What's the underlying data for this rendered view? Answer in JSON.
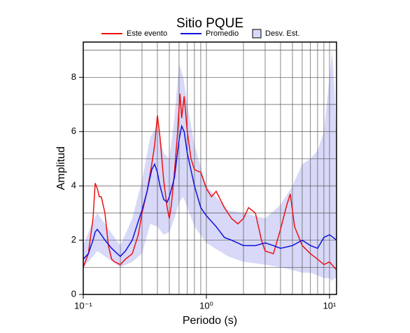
{
  "chart_data": {
    "type": "line",
    "title": "Sitio PQUE",
    "x_label": "Periodo (s)",
    "y_label": "Amplitud",
    "xscale": "log",
    "xlim": [
      0.1,
      11.4
    ],
    "ylim": [
      0,
      9.3
    ],
    "xticks": [
      {
        "value": 0.1,
        "label": "10⁻¹"
      },
      {
        "value": 1,
        "label": "10⁰"
      },
      {
        "value": 10,
        "label": "10¹"
      }
    ],
    "xminor": [
      0.2,
      0.3,
      0.4,
      0.5,
      0.6,
      0.7,
      0.8,
      0.9,
      2,
      3,
      4,
      5,
      6,
      7,
      8,
      9
    ],
    "yticks": [
      0,
      2,
      4,
      6,
      8
    ],
    "yminor": [
      1,
      3,
      5,
      7,
      9
    ],
    "grid": true,
    "legend": "top",
    "band": {
      "name": "Desv. Est.",
      "color": "#d8d8f8",
      "x": [
        0.1,
        0.12,
        0.13,
        0.15,
        0.2,
        0.25,
        0.3,
        0.35,
        0.4,
        0.45,
        0.5,
        0.55,
        0.6,
        0.65,
        0.7,
        0.8,
        1,
        1.5,
        2,
        3,
        4,
        5,
        6,
        7,
        8,
        9,
        10,
        10.5,
        11,
        11.4
      ],
      "upper": [
        1.8,
        2.7,
        3.0,
        2.6,
        1.8,
        2.8,
        4.2,
        5.8,
        6.2,
        5.2,
        5.0,
        6.5,
        8.5,
        8.0,
        7.0,
        5.5,
        4.0,
        3.1,
        3.0,
        2.8,
        3.3,
        4.0,
        4.8,
        5.0,
        5.3,
        6.0,
        8.0,
        9.0,
        7.5,
        5.5
      ],
      "lower": [
        1.0,
        1.4,
        1.6,
        1.4,
        1.0,
        1.2,
        1.5,
        2.6,
        2.5,
        2.2,
        2.3,
        2.8,
        3.4,
        3.6,
        3.2,
        2.5,
        1.9,
        1.4,
        1.2,
        1.1,
        1.0,
        0.9,
        0.8,
        0.8,
        0.7,
        0.6,
        0.6,
        0.5,
        0.6,
        0.6
      ]
    },
    "series": [
      {
        "name": "Este evento",
        "color": "#ee1111",
        "x": [
          0.1,
          0.11,
          0.12,
          0.125,
          0.13,
          0.135,
          0.14,
          0.15,
          0.16,
          0.17,
          0.18,
          0.2,
          0.22,
          0.25,
          0.28,
          0.3,
          0.33,
          0.36,
          0.38,
          0.4,
          0.42,
          0.45,
          0.48,
          0.5,
          0.52,
          0.55,
          0.58,
          0.61,
          0.63,
          0.66,
          0.7,
          0.75,
          0.8,
          0.9,
          1.0,
          1.1,
          1.2,
          1.4,
          1.6,
          1.8,
          2.0,
          2.2,
          2.5,
          2.8,
          3.0,
          3.5,
          4.0,
          4.5,
          4.8,
          5.2,
          6,
          7,
          8,
          9,
          10,
          11.4
        ],
        "values": [
          1.0,
          1.5,
          2.8,
          4.1,
          3.9,
          3.6,
          3.6,
          3.0,
          1.8,
          1.3,
          1.2,
          1.1,
          1.3,
          1.5,
          2.2,
          3.0,
          3.8,
          4.8,
          5.5,
          6.6,
          5.8,
          4.2,
          3.2,
          2.8,
          3.3,
          4.5,
          5.8,
          7.4,
          6.5,
          7.3,
          6.0,
          5.0,
          4.6,
          4.5,
          3.9,
          3.6,
          3.8,
          3.2,
          2.8,
          2.6,
          2.8,
          3.2,
          3.0,
          2.0,
          1.6,
          1.5,
          2.4,
          3.3,
          3.7,
          2.5,
          1.8,
          1.5,
          1.3,
          1.1,
          1.2,
          0.9
        ]
      },
      {
        "name": "Promedio",
        "color": "#1111dd",
        "x": [
          0.1,
          0.11,
          0.12,
          0.125,
          0.13,
          0.14,
          0.15,
          0.17,
          0.2,
          0.22,
          0.25,
          0.28,
          0.3,
          0.33,
          0.36,
          0.38,
          0.4,
          0.42,
          0.45,
          0.48,
          0.5,
          0.55,
          0.6,
          0.63,
          0.66,
          0.7,
          0.8,
          0.9,
          1.0,
          1.2,
          1.4,
          1.6,
          2,
          2.5,
          3,
          3.5,
          4,
          5,
          6,
          7,
          8,
          9,
          10,
          11.4
        ],
        "values": [
          1.3,
          1.5,
          2.0,
          2.3,
          2.4,
          2.2,
          2.0,
          1.7,
          1.4,
          1.6,
          2.0,
          2.7,
          3.1,
          3.8,
          4.6,
          4.8,
          4.5,
          4.0,
          3.5,
          3.4,
          3.6,
          4.3,
          5.7,
          6.2,
          6.0,
          5.2,
          4.0,
          3.2,
          2.9,
          2.5,
          2.1,
          2.0,
          1.8,
          1.8,
          1.9,
          1.8,
          1.7,
          1.8,
          2.0,
          1.8,
          1.7,
          2.1,
          2.2,
          2.0
        ]
      }
    ]
  }
}
